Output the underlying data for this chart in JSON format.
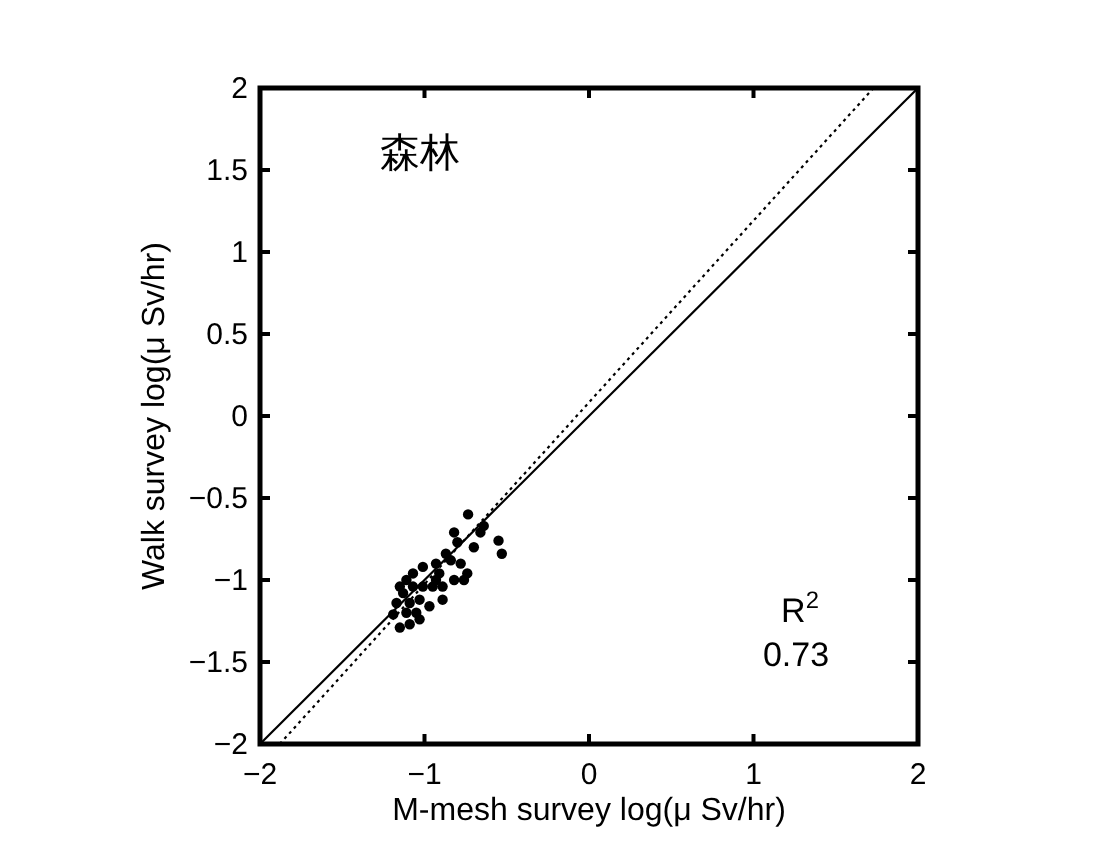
{
  "chart_data": {
    "type": "scatter",
    "xlabel": "M-mesh survey log(μ Sv/hr)",
    "ylabel": "Walk survey log(μ Sv/hr)",
    "xlim": [
      -2,
      2
    ],
    "ylim": [
      -2,
      2
    ],
    "xticks": [
      -2,
      -1,
      0,
      1,
      2
    ],
    "yticks": [
      -2,
      -1.5,
      -1,
      -0.5,
      0,
      0.5,
      1,
      1.5,
      2
    ],
    "grid": false,
    "annotations": [
      "森林",
      "R$^{2}$",
      "0.73"
    ],
    "series": [
      {
        "color": "#000000",
        "marker": "circle",
        "x": [
          -0.735,
          -0.64,
          -0.55,
          -0.53,
          -0.82,
          -0.7,
          -0.74,
          -0.84,
          -0.91,
          -0.95,
          -1.03,
          -1.11,
          -1.19,
          -1.15,
          -1.09,
          -1.07,
          -1.13,
          -1.15,
          -1.03,
          -0.97,
          -0.89,
          -0.78,
          -0.76,
          -0.87,
          -0.93,
          -1.01,
          -1.07,
          -1.11,
          -1.05,
          -1.09,
          -1.17,
          -0.89,
          -0.82,
          -0.66,
          -0.8,
          -0.93,
          -1.01
        ],
        "values": [
          -0.6,
          -0.67,
          -0.76,
          -0.84,
          -0.71,
          -0.8,
          -0.96,
          -0.88,
          -0.96,
          -1.04,
          -1.12,
          -1.2,
          -1.21,
          -1.29,
          -1.14,
          -1.04,
          -1.08,
          -1.04,
          -1.24,
          -1.16,
          -1.04,
          -0.9,
          -1.0,
          -0.84,
          -0.9,
          -0.92,
          -0.96,
          -1.0,
          -1.2,
          -1.27,
          -1.14,
          -1.12,
          -1.0,
          -0.71,
          -0.77,
          -1.0,
          -1.04
        ]
      },
      {
        "type": "line",
        "color": "#000000",
        "line_style": "solid",
        "marker": "none",
        "x": [
          -2,
          2
        ],
        "values": [
          -2,
          2
        ]
      },
      {
        "type": "line",
        "color": "#000000",
        "line_style": "dotted",
        "marker": "none",
        "x": [
          -1.88,
          1.73
        ],
        "values": [
          -2,
          2
        ]
      }
    ]
  }
}
